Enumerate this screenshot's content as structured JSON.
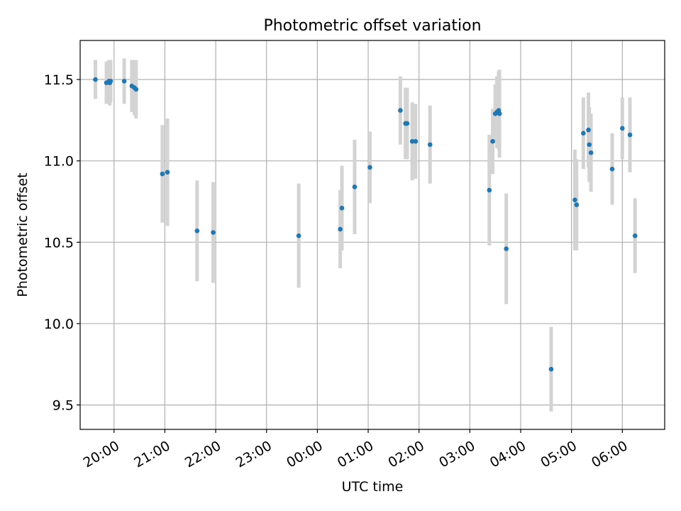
{
  "chart_data": {
    "type": "scatter",
    "title": "Photometric offset variation",
    "xlabel": "UTC time",
    "ylabel": "Photometric offset",
    "x_is_time": true,
    "x_start": "19:20",
    "x_end": "06:50",
    "ylim": [
      9.35,
      11.74
    ],
    "yticks": [
      9.5,
      10.0,
      10.5,
      11.0,
      11.5
    ],
    "ytick_labels": [
      "9.5",
      "10.0",
      "10.5",
      "11.0",
      "11.5"
    ],
    "xticks": [
      "20:00",
      "21:00",
      "22:00",
      "23:00",
      "00:00",
      "01:00",
      "02:00",
      "03:00",
      "04:00",
      "05:00",
      "06:00"
    ],
    "grid": true,
    "marker_color": "#1f77b4",
    "errorbar_color": "#d3d3d3",
    "points": [
      {
        "x": "19:38",
        "y": 11.5,
        "err": 0.12
      },
      {
        "x": "19:51",
        "y": 11.48,
        "err": 0.13
      },
      {
        "x": "19:54",
        "y": 11.49,
        "err": 0.13
      },
      {
        "x": "19:55",
        "y": 11.48,
        "err": 0.14
      },
      {
        "x": "19:56",
        "y": 11.49,
        "err": 0.13
      },
      {
        "x": "20:12",
        "y": 11.49,
        "err": 0.14
      },
      {
        "x": "20:21",
        "y": 11.46,
        "err": 0.16
      },
      {
        "x": "20:24",
        "y": 11.45,
        "err": 0.17
      },
      {
        "x": "20:26",
        "y": 11.44,
        "err": 0.18
      },
      {
        "x": "20:57",
        "y": 10.92,
        "err": 0.3
      },
      {
        "x": "21:03",
        "y": 10.93,
        "err": 0.33
      },
      {
        "x": "21:38",
        "y": 10.57,
        "err": 0.31
      },
      {
        "x": "21:57",
        "y": 10.56,
        "err": 0.31
      },
      {
        "x": "23:38",
        "y": 10.54,
        "err": 0.32
      },
      {
        "x": "00:27",
        "y": 10.58,
        "err": 0.24
      },
      {
        "x": "00:29",
        "y": 10.71,
        "err": 0.26
      },
      {
        "x": "00:44",
        "y": 10.84,
        "err": 0.29
      },
      {
        "x": "01:02",
        "y": 10.96,
        "err": 0.22
      },
      {
        "x": "01:38",
        "y": 11.31,
        "err": 0.21
      },
      {
        "x": "01:44",
        "y": 11.23,
        "err": 0.22
      },
      {
        "x": "01:46",
        "y": 11.23,
        "err": 0.22
      },
      {
        "x": "01:52",
        "y": 11.12,
        "err": 0.24
      },
      {
        "x": "01:56",
        "y": 11.12,
        "err": 0.23
      },
      {
        "x": "02:13",
        "y": 11.1,
        "err": 0.24
      },
      {
        "x": "03:23",
        "y": 10.82,
        "err": 0.34
      },
      {
        "x": "03:27",
        "y": 11.12,
        "err": 0.2
      },
      {
        "x": "03:30",
        "y": 11.29,
        "err": 0.18
      },
      {
        "x": "03:32",
        "y": 11.3,
        "err": 0.22
      },
      {
        "x": "03:34",
        "y": 11.31,
        "err": 0.24
      },
      {
        "x": "03:35",
        "y": 11.29,
        "err": 0.27
      },
      {
        "x": "03:43",
        "y": 10.46,
        "err": 0.34
      },
      {
        "x": "04:36",
        "y": 9.72,
        "err": 0.26
      },
      {
        "x": "05:04",
        "y": 10.76,
        "err": 0.31
      },
      {
        "x": "05:06",
        "y": 10.73,
        "err": 0.28
      },
      {
        "x": "05:14",
        "y": 11.17,
        "err": 0.22
      },
      {
        "x": "05:20",
        "y": 11.19,
        "err": 0.23
      },
      {
        "x": "05:21",
        "y": 11.1,
        "err": 0.23
      },
      {
        "x": "05:23",
        "y": 11.05,
        "err": 0.24
      },
      {
        "x": "05:48",
        "y": 10.95,
        "err": 0.22
      },
      {
        "x": "06:00",
        "y": 11.2,
        "err": 0.19
      },
      {
        "x": "06:09",
        "y": 11.16,
        "err": 0.23
      },
      {
        "x": "06:15",
        "y": 10.54,
        "err": 0.23
      }
    ]
  }
}
